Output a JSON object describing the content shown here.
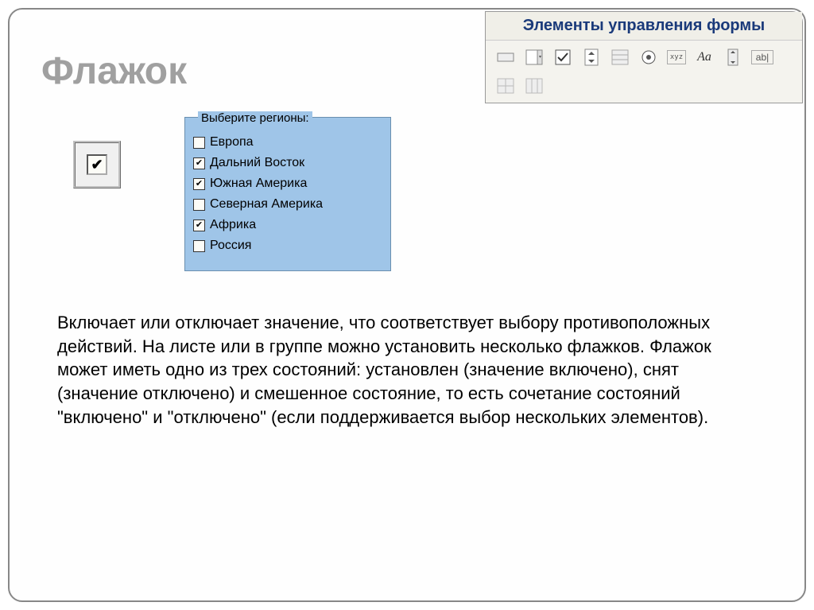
{
  "title": "Флажок",
  "panel": {
    "header": "Элементы управления формы"
  },
  "singleCheckbox": {
    "checked": true
  },
  "regionGroup": {
    "legend": "Выберите регионы:",
    "items": [
      {
        "label": "Европа",
        "checked": false
      },
      {
        "label": "Дальний Восток",
        "checked": true
      },
      {
        "label": "Южная Америка",
        "checked": true
      },
      {
        "label": "Северная Америка",
        "checked": false
      },
      {
        "label": "Африка",
        "checked": true
      },
      {
        "label": "Россия",
        "checked": false
      }
    ]
  },
  "bodyText": "Включает или отключает значение, что соответствует выбору противоположных действий. На листе или в группе можно установить несколько флажков. Флажок может иметь одно из трех состояний: установлен (значение включено), снят (значение отключено) и смешенное состояние, то есть сочетание состояний \"включено\" и \"отключено\" (если поддерживается выбор нескольких элементов).",
  "colors": {
    "titleColor": "#a0a0a0",
    "panelBg": "#f4f3ee",
    "panelText": "#1a3a7a",
    "groupBg": "#9fc5e8",
    "bodyTextColor": "#000000"
  }
}
